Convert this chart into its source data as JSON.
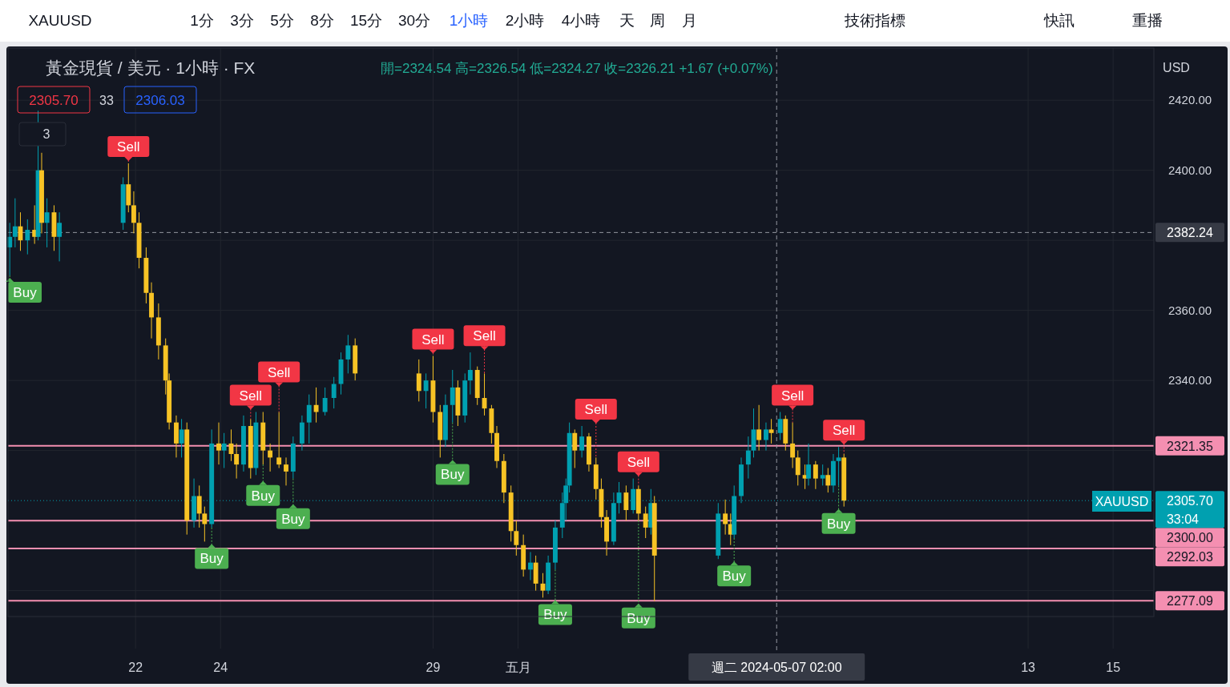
{
  "chart_data": {
    "type": "candlestick",
    "title": "黃金現貨 / 美元 · 1小時 · FX",
    "subtitle": "開=2324.54 高=2326.54 低=2324.27 收=2326.21 +1.67 (+0.07%)",
    "x": [
      "2024-04-19T01:00",
      "2024-04-19T04:00",
      "2024-04-19T07:00",
      "2024-04-19T11:00",
      "2024-04-19T15:00",
      "2024-04-19T17:00",
      "2024-04-19T19:00",
      "2024-04-19T22:00",
      "2024-04-20T02:00",
      "2024-04-20T05:00",
      "2024-04-21T17:00",
      "2024-04-21T20:00",
      "2024-04-21T23:00",
      "2024-04-22T02:00",
      "2024-04-22T06:00",
      "2024-04-22T09:00",
      "2024-04-22T13:00",
      "2024-04-22T17:00",
      "2024-04-22T19:00",
      "2024-04-22T23:00",
      "2024-04-23T02:00",
      "2024-04-23T05:00",
      "2024-04-23T09:00",
      "2024-04-23T12:00",
      "2024-04-23T15:00",
      "2024-04-23T19:00",
      "2024-04-23T23:00",
      "2024-04-24T02:00",
      "2024-04-24T06:00",
      "2024-04-24T09:00",
      "2024-04-24T13:00",
      "2024-04-24T17:00",
      "2024-04-24T20:00",
      "2024-04-25T00:00",
      "2024-04-25T04:00",
      "2024-04-25T09:00",
      "2024-04-25T13:00",
      "2024-04-25T17:00",
      "2024-04-25T22:00",
      "2024-04-26T02:00",
      "2024-04-26T06:00",
      "2024-04-26T11:00",
      "2024-04-26T16:00",
      "2024-04-26T20:00",
      "2024-04-27T00:00",
      "2024-04-27T04:00",
      "2024-04-28T16:00",
      "2024-04-28T20:00",
      "2024-04-29T00:00",
      "2024-04-29T04:00",
      "2024-04-29T07:00",
      "2024-04-29T11:00",
      "2024-04-29T14:00",
      "2024-04-29T18:00",
      "2024-04-29T21:00",
      "2024-04-30T01:00",
      "2024-04-30T05:00",
      "2024-04-30T09:00",
      "2024-04-30T12:00",
      "2024-04-30T16:00",
      "2024-04-30T20:00",
      "2024-04-30T23:00",
      "2024-05-01T03:00",
      "2024-05-01T07:00",
      "2024-05-01T10:00",
      "2024-05-01T14:00",
      "2024-05-01T17:00",
      "2024-05-01T21:00",
      "2024-05-02T01:00",
      "2024-05-02T03:00",
      "2024-05-02T05:00",
      "2024-05-02T08:00",
      "2024-05-02T12:00",
      "2024-05-02T16:00",
      "2024-05-02T20:00",
      "2024-05-02T23:00",
      "2024-05-03T02:00",
      "2024-05-03T06:00",
      "2024-05-03T09:00",
      "2024-05-03T13:00",
      "2024-05-03T17:00",
      "2024-05-03T20:00",
      "2024-05-04T00:00",
      "2024-05-04T03:00",
      "2024-05-04T05:00",
      "2024-05-05T17:00",
      "2024-05-05T21:00",
      "2024-05-06T00:00",
      "2024-05-06T02:00",
      "2024-05-06T06:00",
      "2024-05-06T10:00",
      "2024-05-06T13:00",
      "2024-05-06T16:00",
      "2024-05-06T20:00",
      "2024-05-06T23:00",
      "2024-05-07T04:00",
      "2024-05-07T07:00",
      "2024-05-07T11:00",
      "2024-05-07T14:00",
      "2024-05-07T18:00",
      "2024-05-07T20:00",
      "2024-05-08T00:00",
      "2024-05-08T04:00",
      "2024-05-08T07:00",
      "2024-05-08T10:00",
      "2024-05-08T13:00",
      "2024-05-08T16:00"
    ],
    "ohlc": [
      [
        2378,
        2385,
        2370,
        2381
      ],
      [
        2381,
        2392,
        2378,
        2384
      ],
      [
        2384,
        2388,
        2377,
        2380
      ],
      [
        2380,
        2386,
        2376,
        2383
      ],
      [
        2383,
        2390,
        2379,
        2381
      ],
      [
        2381,
        2417,
        2380,
        2400
      ],
      [
        2400,
        2405,
        2382,
        2385
      ],
      [
        2385,
        2392,
        2378,
        2388
      ],
      [
        2388,
        2390,
        2377,
        2381
      ],
      [
        2381,
        2388,
        2374,
        2385
      ],
      [
        2385,
        2398,
        2383,
        2396
      ],
      [
        2396,
        2402,
        2388,
        2390
      ],
      [
        2390,
        2394,
        2382,
        2385
      ],
      [
        2385,
        2388,
        2372,
        2375
      ],
      [
        2375,
        2378,
        2362,
        2365
      ],
      [
        2365,
        2368,
        2352,
        2358
      ],
      [
        2358,
        2362,
        2346,
        2350
      ],
      [
        2350,
        2352,
        2336,
        2340
      ],
      [
        2340,
        2342,
        2326,
        2328
      ],
      [
        2328,
        2330,
        2318,
        2322
      ],
      [
        2322,
        2329,
        2318,
        2326
      ],
      [
        2326,
        2328,
        2296,
        2300
      ],
      [
        2300,
        2312,
        2298,
        2307
      ],
      [
        2307,
        2310,
        2298,
        2302
      ],
      [
        2302,
        2304,
        2294,
        2299
      ],
      [
        2299,
        2326,
        2298,
        2322
      ],
      [
        2322,
        2328,
        2316,
        2320
      ],
      [
        2320,
        2325,
        2315,
        2322
      ],
      [
        2322,
        2326,
        2317,
        2319
      ],
      [
        2319,
        2322,
        2312,
        2316
      ],
      [
        2316,
        2330,
        2314,
        2327
      ],
      [
        2327,
        2329,
        2312,
        2315
      ],
      [
        2315,
        2331,
        2313,
        2328
      ],
      [
        2328,
        2331,
        2316,
        2320
      ],
      [
        2320,
        2322,
        2314,
        2318
      ],
      [
        2318,
        2331,
        2315,
        2316
      ],
      [
        2316,
        2318,
        2310,
        2314
      ],
      [
        2314,
        2324,
        2312,
        2322
      ],
      [
        2322,
        2330,
        2320,
        2328
      ],
      [
        2328,
        2336,
        2322,
        2333
      ],
      [
        2333,
        2338,
        2328,
        2331
      ],
      [
        2331,
        2338,
        2330,
        2335
      ],
      [
        2335,
        2341,
        2332,
        2339
      ],
      [
        2339,
        2348,
        2336,
        2346
      ],
      [
        2346,
        2353,
        2342,
        2350
      ],
      [
        2350,
        2352,
        2340,
        2342
      ],
      [
        2342,
        2346,
        2334,
        2337
      ],
      [
        2337,
        2342,
        2332,
        2340
      ],
      [
        2340,
        2347,
        2328,
        2331
      ],
      [
        2331,
        2333,
        2318,
        2323
      ],
      [
        2323,
        2336,
        2321,
        2333
      ],
      [
        2333,
        2343,
        2328,
        2338
      ],
      [
        2338,
        2340,
        2327,
        2330
      ],
      [
        2330,
        2342,
        2328,
        2340
      ],
      [
        2340,
        2348,
        2336,
        2343
      ],
      [
        2343,
        2344,
        2333,
        2335
      ],
      [
        2335,
        2342,
        2330,
        2332
      ],
      [
        2332,
        2333,
        2322,
        2325
      ],
      [
        2325,
        2327,
        2315,
        2317
      ],
      [
        2317,
        2319,
        2305,
        2308
      ],
      [
        2308,
        2310,
        2294,
        2297
      ],
      [
        2297,
        2300,
        2290,
        2293
      ],
      [
        2293,
        2296,
        2284,
        2286
      ],
      [
        2286,
        2291,
        2283,
        2288
      ],
      [
        2288,
        2290,
        2280,
        2282
      ],
      [
        2282,
        2285,
        2278,
        2280
      ],
      [
        2280,
        2290,
        2279,
        2288
      ],
      [
        2288,
        2300,
        2286,
        2298
      ],
      [
        2298,
        2308,
        2295,
        2305
      ],
      [
        2305,
        2312,
        2300,
        2310
      ],
      [
        2310,
        2328,
        2308,
        2325
      ],
      [
        2325,
        2326,
        2315,
        2320
      ],
      [
        2320,
        2327,
        2318,
        2324
      ],
      [
        2324,
        2325,
        2314,
        2316
      ],
      [
        2316,
        2318,
        2306,
        2309
      ],
      [
        2309,
        2312,
        2298,
        2301
      ],
      [
        2301,
        2303,
        2290,
        2294
      ],
      [
        2294,
        2308,
        2293,
        2305
      ],
      [
        2305,
        2311,
        2302,
        2308
      ],
      [
        2308,
        2310,
        2300,
        2303
      ],
      [
        2303,
        2312,
        2302,
        2309
      ],
      [
        2309,
        2310,
        2300,
        2302
      ],
      [
        2302,
        2304,
        2295,
        2298
      ],
      [
        2298,
        2309,
        2296,
        2305
      ],
      [
        2305,
        2307,
        2277,
        2290
      ],
      [
        2290,
        2305,
        2289,
        2302
      ],
      [
        2302,
        2306,
        2296,
        2299
      ],
      [
        2299,
        2302,
        2293,
        2296
      ],
      [
        2296,
        2310,
        2295,
        2307
      ],
      [
        2307,
        2318,
        2305,
        2316
      ],
      [
        2316,
        2324,
        2312,
        2320
      ],
      [
        2320,
        2332,
        2318,
        2326
      ],
      [
        2326,
        2333,
        2320,
        2323
      ],
      [
        2323,
        2328,
        2320,
        2326
      ],
      [
        2326,
        2329,
        2322,
        2325
      ],
      [
        2325,
        2331,
        2323,
        2329
      ],
      [
        2329,
        2330,
        2320,
        2322
      ],
      [
        2322,
        2328,
        2315,
        2318
      ],
      [
        2318,
        2320,
        2310,
        2313
      ],
      [
        2313,
        2316,
        2309,
        2312
      ],
      [
        2312,
        2322,
        2310,
        2316
      ],
      [
        2316,
        2317,
        2309,
        2312
      ],
      [
        2312,
        2316,
        2310,
        2313
      ],
      [
        2313,
        2315,
        2308,
        2310
      ],
      [
        2310,
        2319,
        2308,
        2317
      ],
      [
        2317,
        2321,
        2310,
        2318
      ],
      [
        2318,
        2319,
        2304,
        2305.7
      ]
    ],
    "xlim": [
      "2024-04-19T00:00",
      "2024-05-15T23:00"
    ],
    "xticks": [
      {
        "value": "2024-04-22",
        "label": "22"
      },
      {
        "value": "2024-04-24",
        "label": "24"
      },
      {
        "value": "2024-04-29",
        "label": "29"
      },
      {
        "value": "2024-05-01",
        "label": "五月"
      },
      {
        "value": "2024-05-13",
        "label": "13"
      },
      {
        "value": "2024-05-15",
        "label": "15"
      }
    ],
    "ylim": [
      2272.6,
      2434.9
    ],
    "yticks": [
      {
        "value": 2420,
        "label": "2420.00"
      },
      {
        "value": 2400,
        "label": "2400.00"
      },
      {
        "value": 2380,
        "label": null
      },
      {
        "value": 2360,
        "label": "2360.00"
      },
      {
        "value": 2340,
        "label": "2340.00"
      },
      {
        "value": 2320,
        "label": null
      },
      {
        "value": 2300,
        "label": null
      },
      {
        "value": 2280,
        "label": null
      }
    ],
    "grid": true,
    "ref_lines": [
      {
        "axis": "y",
        "value": 2321.35,
        "label": "2321.35",
        "color": "#f48fb1"
      },
      {
        "axis": "y",
        "value": 2300,
        "label": "2300.00",
        "color": "#f48fb1"
      },
      {
        "axis": "y",
        "value": 2292.03,
        "label": "2292.03",
        "color": "#f48fb1"
      },
      {
        "axis": "y",
        "value": 2277.09,
        "label": "2277.09",
        "color": "#f48fb1"
      },
      {
        "axis": "y",
        "value": 2305.7,
        "label": "2305.70",
        "color": "#00a0b0",
        "line_style": "dotted"
      },
      {
        "axis": "y",
        "value": 2382.24,
        "label": "2382.24",
        "color": "#9598a1",
        "line_style": "dashed"
      },
      {
        "axis": "x",
        "value": "2024-05-07T02:00",
        "label": "週二 2024-05-07 02:00",
        "color": "#9598a1",
        "line_style": "dashed"
      }
    ],
    "annotations": [
      "XAUUSD",
      "1分",
      "3分",
      "5分",
      "8分",
      "15分",
      "30分",
      "1小時",
      "2小時",
      "4小時",
      "天",
      "周",
      "月",
      "技術指標",
      "快訊",
      "重播",
      "2305.70",
      "33",
      "2306.03",
      "3",
      "USD",
      "XAUUSD",
      "33:04",
      {
        "text": "Sell",
        "x": "2024-04-21T20:00",
        "y": 2402
      },
      {
        "text": "Sell",
        "x": "2024-04-24T17:00",
        "y": 2329
      },
      {
        "text": "Sell",
        "x": "2024-04-25T09:00",
        "y": 2331
      },
      {
        "text": "Sell",
        "x": "2024-04-29T00:00",
        "y": 2347
      },
      {
        "text": "Sell",
        "x": "2024-04-30T05:00",
        "y": 2342
      },
      {
        "text": "Sell",
        "x": "2024-05-02T20:00",
        "y": 2318
      },
      {
        "text": "Sell",
        "x": "2024-05-03T20:00",
        "y": 2310
      },
      {
        "text": "Sell",
        "x": "2024-05-07T11:00",
        "y": 2328
      },
      {
        "text": "Sell",
        "x": "2024-05-08T16:00",
        "y": 2319
      },
      {
        "text": "Buy",
        "x": "2024-04-19T01:00",
        "y": 2370
      },
      {
        "text": "Buy",
        "x": "2024-04-23T19:00",
        "y": 2298
      },
      {
        "text": "Buy",
        "x": "2024-04-25T00:00",
        "y": 2316
      },
      {
        "text": "Buy",
        "x": "2024-04-25T17:00",
        "y": 2312
      },
      {
        "text": "Buy",
        "x": "2024-04-29T11:00",
        "y": 2328
      },
      {
        "text": "Buy",
        "x": "2024-05-01T21:00",
        "y": 2286
      },
      {
        "text": "Buy",
        "x": "2024-05-03T20:00",
        "y": 2300
      },
      {
        "text": "Buy",
        "x": "2024-05-06T02:00",
        "y": 2295
      },
      {
        "text": "Buy",
        "x": "2024-05-08T13:00",
        "y": 2310
      }
    ]
  }
}
